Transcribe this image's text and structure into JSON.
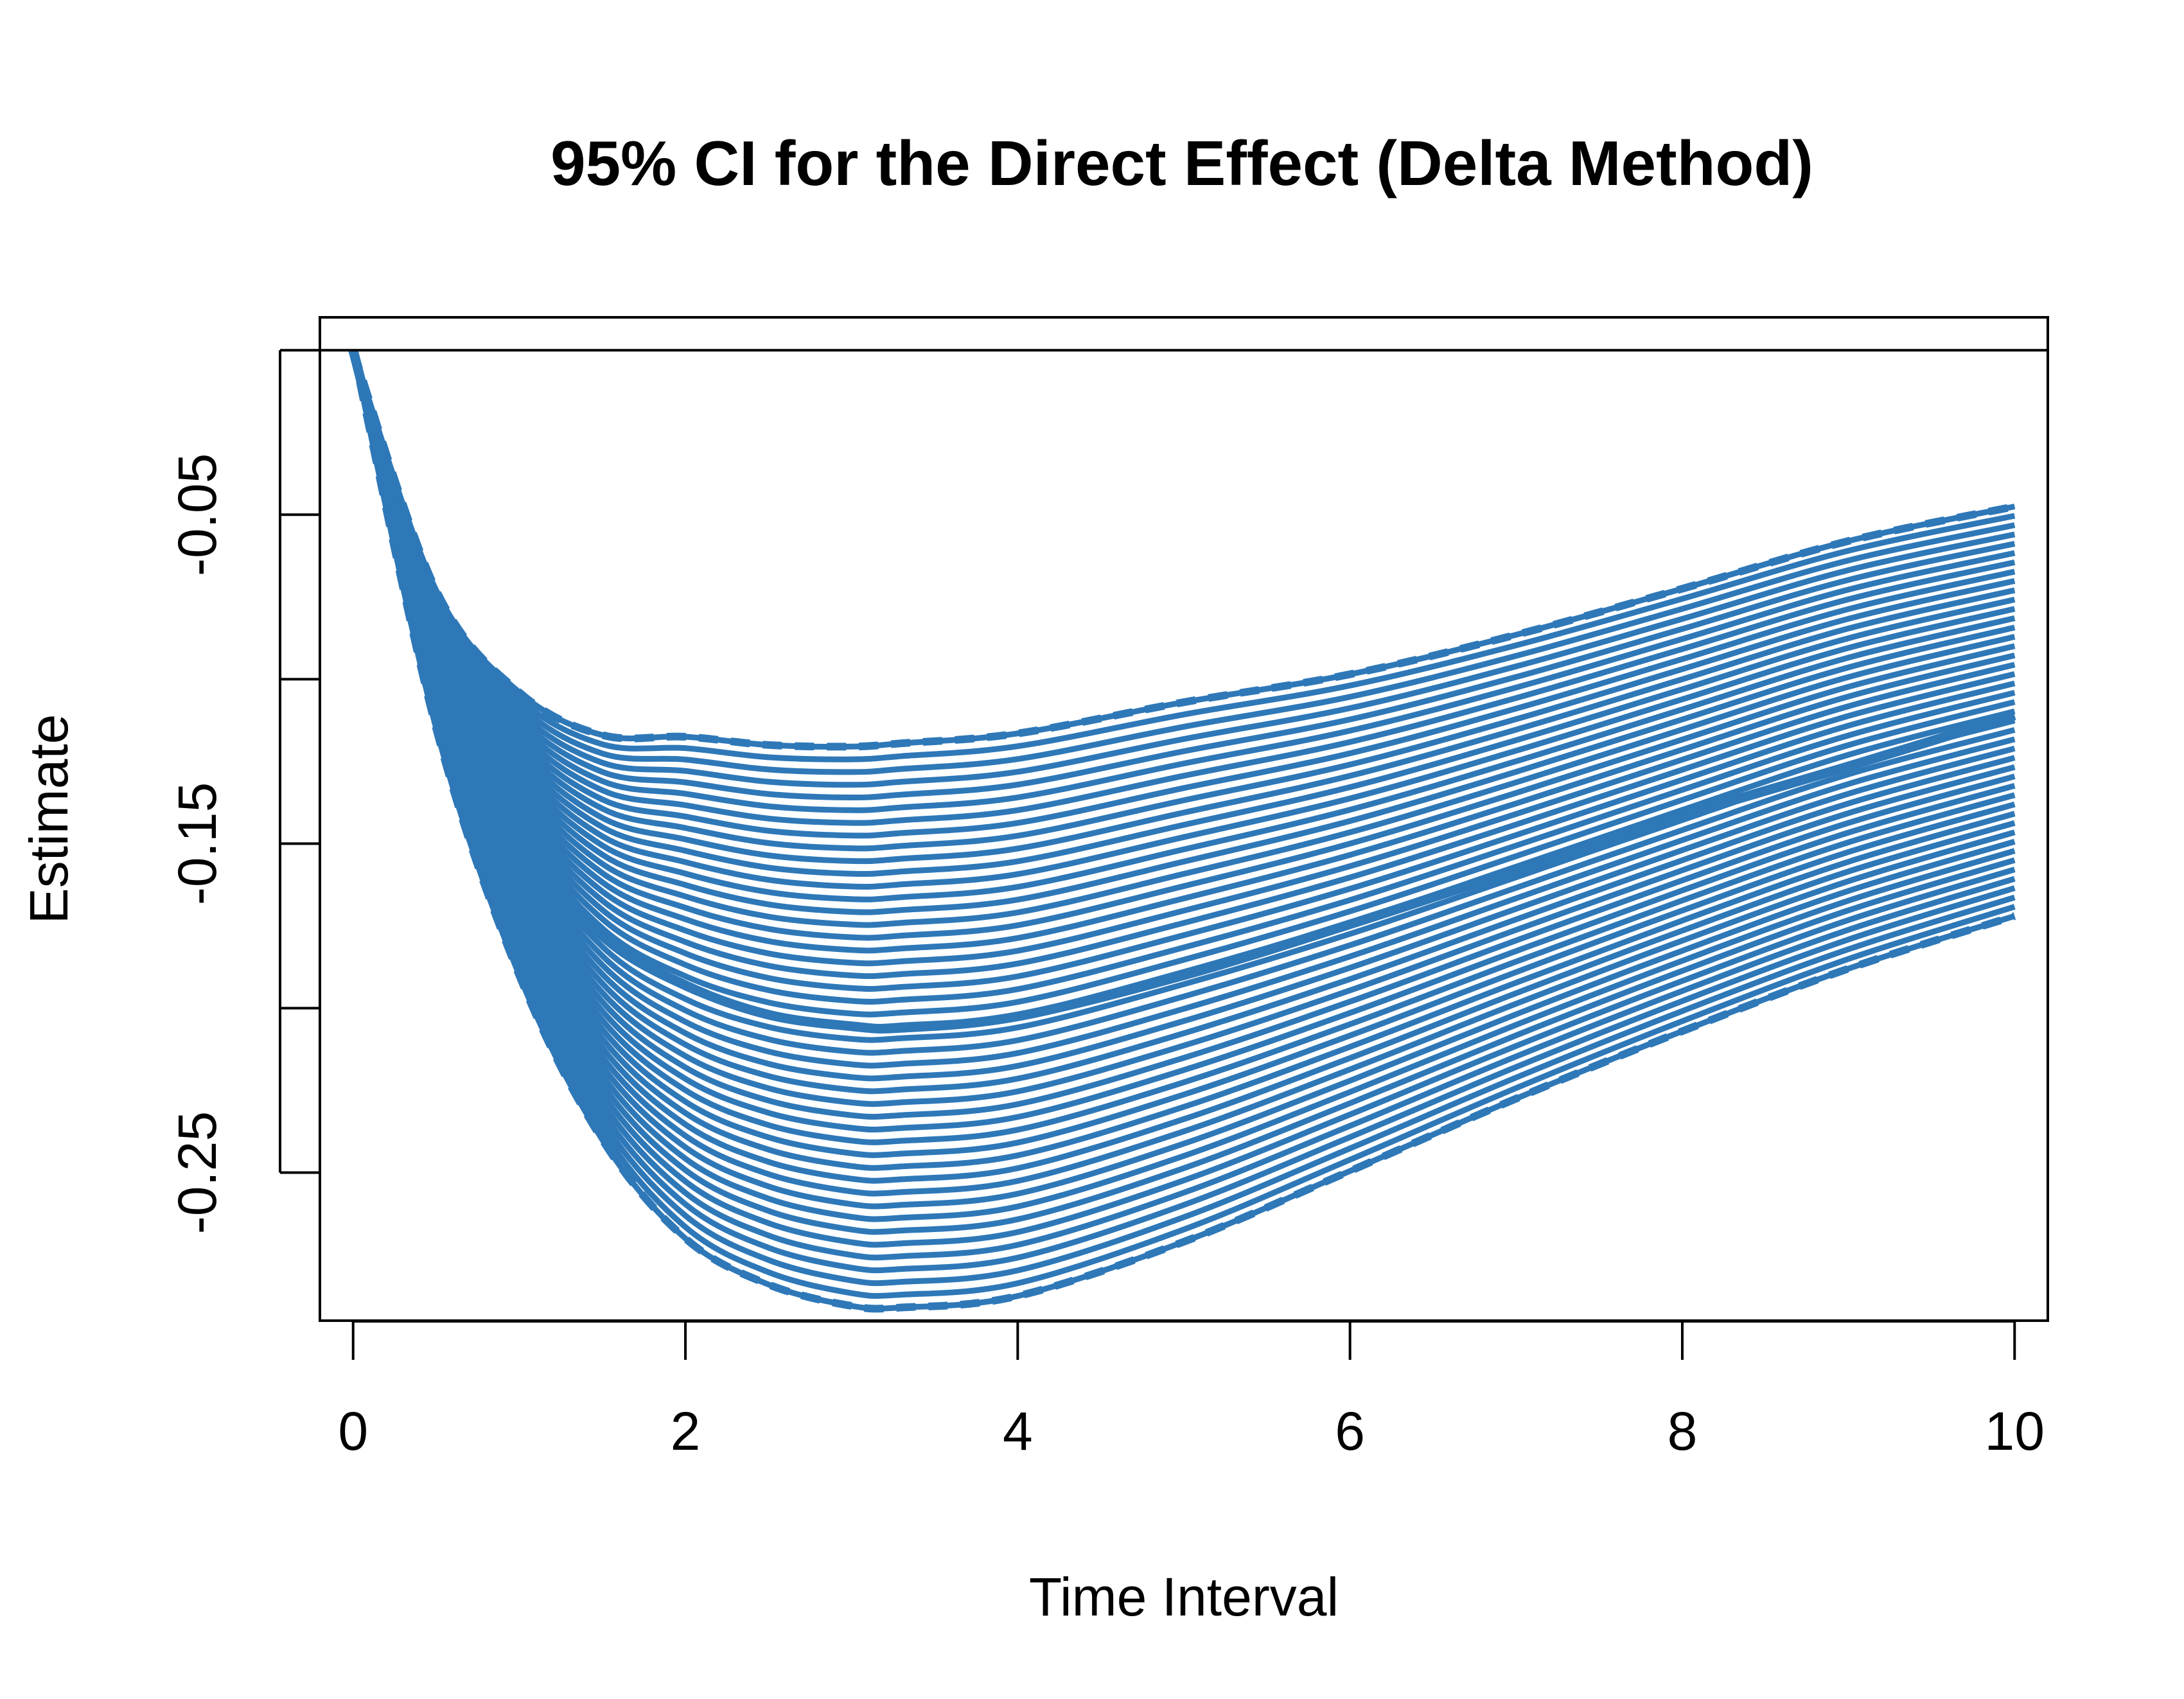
{
  "chart_data": {
    "type": "line",
    "title": "95% CI for the Direct Effect (Delta Method)",
    "xlabel": "Time Interval",
    "ylabel": "Estimate",
    "xlim": [
      -0.2,
      10.2
    ],
    "ylim": [
      -0.295,
      0.01
    ],
    "x_ticks": [
      0,
      2,
      4,
      6,
      8,
      10
    ],
    "x_tick_labels": [
      "0",
      "2",
      "4",
      "6",
      "8",
      "10"
    ],
    "y_ticks": [
      -0.05,
      -0.15,
      -0.25
    ],
    "y_tick_labels": [
      "-0.05",
      "-0.15",
      "-0.25"
    ],
    "reference_line_y": 0,
    "grid": false,
    "color": "#2E78B8",
    "band_line_count": 45,
    "series": [
      {
        "role": "estimate",
        "line_style": "solid",
        "points": [
          [
            0,
            0
          ],
          [
            0.5,
            -0.094
          ],
          [
            1,
            -0.147
          ],
          [
            1.5,
            -0.178
          ],
          [
            2,
            -0.193
          ],
          [
            2.5,
            -0.202
          ],
          [
            3,
            -0.2055
          ],
          [
            3.3,
            -0.206
          ],
          [
            4,
            -0.2025
          ],
          [
            5,
            -0.19
          ],
          [
            6,
            -0.1745
          ],
          [
            7,
            -0.158
          ],
          [
            8,
            -0.1415
          ],
          [
            9,
            -0.1265
          ],
          [
            10,
            -0.111
          ]
        ]
      },
      {
        "role": "lower_bound",
        "line_style": "dashed",
        "points": [
          [
            0,
            0
          ],
          [
            0.5,
            -0.115
          ],
          [
            1,
            -0.19
          ],
          [
            1.5,
            -0.24
          ],
          [
            2,
            -0.27
          ],
          [
            2.5,
            -0.284
          ],
          [
            3,
            -0.2905
          ],
          [
            3.3,
            -0.291
          ],
          [
            4,
            -0.2875
          ],
          [
            5,
            -0.271
          ],
          [
            6,
            -0.2495
          ],
          [
            7,
            -0.2275
          ],
          [
            8,
            -0.207
          ],
          [
            9,
            -0.188
          ],
          [
            10,
            -0.172
          ]
        ]
      },
      {
        "role": "upper_bound",
        "line_style": "dashed",
        "points": [
          [
            0,
            0
          ],
          [
            0.5,
            -0.073
          ],
          [
            1,
            -0.104
          ],
          [
            1.5,
            -0.117
          ],
          [
            2,
            -0.1175
          ],
          [
            2.5,
            -0.12
          ],
          [
            3,
            -0.1205
          ],
          [
            3.3,
            -0.1195
          ],
          [
            4,
            -0.1165
          ],
          [
            5,
            -0.107
          ],
          [
            6,
            -0.0985
          ],
          [
            7,
            -0.0865
          ],
          [
            8,
            -0.0725
          ],
          [
            9,
            -0.058
          ],
          [
            10,
            -0.0475
          ]
        ]
      }
    ]
  }
}
